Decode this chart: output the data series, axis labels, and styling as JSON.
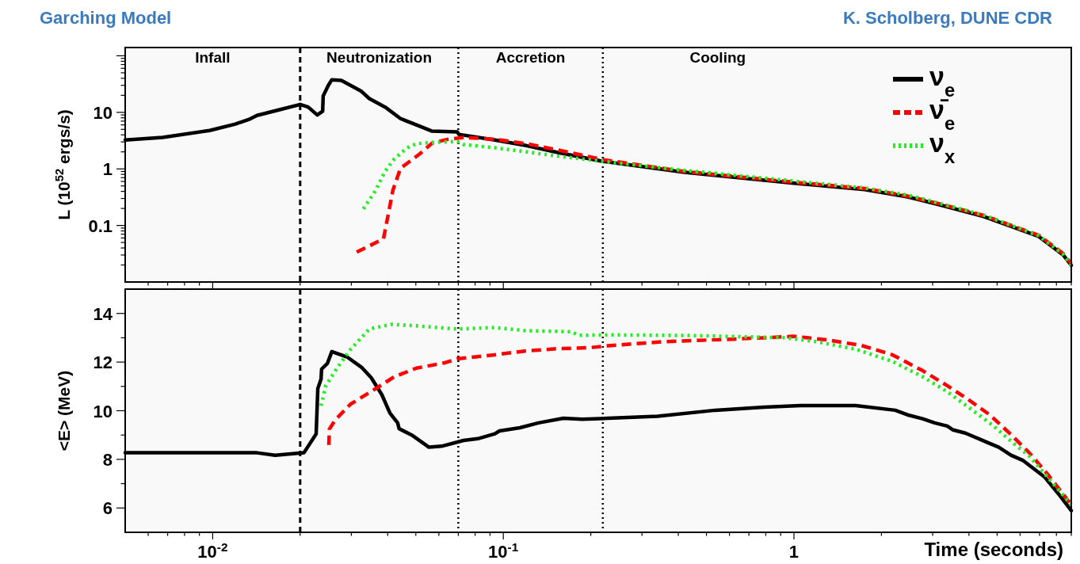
{
  "chart_data": [
    {
      "type": "line",
      "title": "Garching Model",
      "ylabel": "L (10$^{52}$ ergs/s)",
      "log": "xy",
      "legend": "top right",
      "tick_labels": "y",
      "annotations": [
        "K. Scholberg, DUNE CDR",
        "Infall",
        "Neutronization",
        "Accretion",
        "Cooling"
      ],
      "xlim": [
        0.005,
        9
      ],
      "xticks": [
        {
          "value": 0.006,
          "label": null
        },
        {
          "value": 0.007,
          "label": null
        },
        {
          "value": 0.008,
          "label": null
        },
        {
          "value": 0.009,
          "label": null
        },
        0.01,
        {
          "value": 0.02,
          "label": null
        },
        {
          "value": 0.03,
          "label": null
        },
        {
          "value": 0.04,
          "label": null
        },
        {
          "value": 0.05,
          "label": null
        },
        {
          "value": 0.06,
          "label": null
        },
        {
          "value": 0.07,
          "label": null
        },
        {
          "value": 0.08,
          "label": null
        },
        {
          "value": 0.09,
          "label": null
        },
        0.1,
        {
          "value": 0.2,
          "label": null
        },
        {
          "value": 0.3,
          "label": null
        },
        {
          "value": 0.4,
          "label": null
        },
        {
          "value": 0.5,
          "label": null
        },
        {
          "value": 0.6,
          "label": null
        },
        {
          "value": 0.7,
          "label": null
        },
        {
          "value": 0.8,
          "label": null
        },
        {
          "value": 0.9,
          "label": null
        },
        1,
        {
          "value": 2,
          "label": null
        },
        {
          "value": 3,
          "label": null
        },
        {
          "value": 4,
          "label": null
        },
        {
          "value": 5,
          "label": null
        },
        {
          "value": 6,
          "label": null
        },
        {
          "value": 7,
          "label": null
        },
        {
          "value": 8,
          "label": null
        },
        {
          "value": 9,
          "label": null
        }
      ],
      "ylim": [
        0.01,
        140
      ],
      "yticks": [
        {
          "value": 0.02,
          "label": null
        },
        {
          "value": 0.03,
          "label": null
        },
        {
          "value": 0.04,
          "label": null
        },
        {
          "value": 0.05,
          "label": null
        },
        {
          "value": 0.06,
          "label": null
        },
        {
          "value": 0.07,
          "label": null
        },
        {
          "value": 0.08,
          "label": null
        },
        {
          "value": 0.09,
          "label": null
        },
        0.1,
        {
          "value": 0.2,
          "label": null
        },
        {
          "value": 0.3,
          "label": null
        },
        {
          "value": 0.4,
          "label": null
        },
        {
          "value": 0.5,
          "label": null
        },
        {
          "value": 0.6,
          "label": null
        },
        {
          "value": 0.7,
          "label": null
        },
        {
          "value": 0.8,
          "label": null
        },
        {
          "value": 0.9,
          "label": null
        },
        1,
        {
          "value": 2,
          "label": null
        },
        {
          "value": 3,
          "label": null
        },
        {
          "value": 4,
          "label": null
        },
        {
          "value": 5,
          "label": null
        },
        {
          "value": 6,
          "label": null
        },
        {
          "value": 7,
          "label": null
        },
        {
          "value": 8,
          "label": null
        },
        {
          "value": 9,
          "label": null
        },
        10,
        {
          "value": 20,
          "label": null
        },
        {
          "value": 30,
          "label": null
        },
        {
          "value": 40,
          "label": null
        },
        {
          "value": 50,
          "label": null
        },
        {
          "value": 60,
          "label": null
        },
        {
          "value": 70,
          "label": null
        },
        {
          "value": 80,
          "label": null
        },
        {
          "value": 90,
          "label": null
        },
        {
          "value": 100,
          "label": null
        }
      ],
      "ref_lines": [
        {
          "axis": "x",
          "value": 0.02,
          "line_style": "dashed"
        },
        {
          "axis": "x",
          "value": 0.07,
          "line_style": "dotted"
        },
        {
          "axis": "x",
          "value": 0.22,
          "line_style": "dotted"
        }
      ],
      "series": [
        {
          "name": "ν$_{e}$",
          "color": "#000000",
          "line_style": "solid",
          "x": [
            0.005,
            0.00672,
            0.00976,
            0.0119,
            0.0133,
            0.0142,
            0.0173,
            0.02,
            0.0213,
            0.0229,
            0.0239,
            0.024,
            0.025,
            0.0257,
            0.0277,
            0.0298,
            0.0325,
            0.0346,
            0.0392,
            0.0443,
            0.0502,
            0.0569,
            0.0694,
            0.0703,
            0.0935,
            0.12,
            0.154,
            0.22,
            0.42,
            1.0,
            1.75,
            2.46,
            3.13,
            4.5,
            6.95,
            8.43,
            9
          ],
          "values": [
            3.25,
            3.6,
            4.77,
            6.16,
            7.45,
            8.8,
            11.4,
            13.8,
            12.4,
            9.0,
            10.5,
            19.5,
            30,
            37.7,
            36.7,
            30,
            23.5,
            17.5,
            12.4,
            7.75,
            6.0,
            4.65,
            4.53,
            4.08,
            3.25,
            2.58,
            1.95,
            1.36,
            0.87,
            0.56,
            0.43,
            0.32,
            0.236,
            0.144,
            0.064,
            0.0303,
            0.0197
          ]
        },
        {
          "name": "ν̄$_{e}$",
          "color": "#ff0000",
          "line_style": "dashed",
          "x": [
            0.0313,
            0.0387,
            0.0417,
            0.0443,
            0.0515,
            0.0569,
            0.0644,
            0.073,
            0.0935,
            0.12,
            0.154,
            0.22,
            0.42,
            1.0,
            1.75,
            2.46,
            3.13,
            4.5,
            6.95,
            8.43,
            9
          ],
          "values": [
            0.0337,
            0.058,
            0.42,
            1.03,
            1.83,
            2.86,
            3.34,
            3.6,
            3.34,
            2.79,
            2.16,
            1.46,
            0.9,
            0.58,
            0.45,
            0.33,
            0.245,
            0.15,
            0.067,
            0.032,
            0.021
          ]
        },
        {
          "name": "ν$_{x}$",
          "color": "#22ee22",
          "line_style": "dotted",
          "x": [
            0.033,
            0.0364,
            0.0392,
            0.0422,
            0.0467,
            0.0502,
            0.0569,
            0.0694,
            0.073,
            0.0935,
            0.12,
            0.154,
            0.22,
            0.42,
            1.0,
            1.75,
            2.46,
            3.13,
            4.5,
            6.95,
            8.43,
            9
          ],
          "values": [
            0.196,
            0.42,
            0.91,
            1.51,
            2.36,
            2.79,
            2.94,
            3.05,
            2.69,
            2.36,
            2.0,
            1.68,
            1.36,
            0.94,
            0.61,
            0.46,
            0.345,
            0.25,
            0.152,
            0.066,
            0.031,
            0.02
          ]
        }
      ]
    },
    {
      "type": "line",
      "xlabel": "Time (seconds)",
      "ylabel": "<E> (MeV)",
      "log": "x",
      "xlim": [
        0.005,
        9
      ],
      "xticks": [
        {
          "value": 0.006,
          "label": null
        },
        {
          "value": 0.007,
          "label": null
        },
        {
          "value": 0.008,
          "label": null
        },
        {
          "value": 0.009,
          "label": null
        },
        {
          "value": 0.01,
          "label": "10$^{-2}$"
        },
        {
          "value": 0.02,
          "label": null
        },
        {
          "value": 0.03,
          "label": null
        },
        {
          "value": 0.04,
          "label": null
        },
        {
          "value": 0.05,
          "label": null
        },
        {
          "value": 0.06,
          "label": null
        },
        {
          "value": 0.07,
          "label": null
        },
        {
          "value": 0.08,
          "label": null
        },
        {
          "value": 0.09,
          "label": null
        },
        {
          "value": 0.1,
          "label": "10$^{-1}$"
        },
        {
          "value": 0.2,
          "label": null
        },
        {
          "value": 0.3,
          "label": null
        },
        {
          "value": 0.4,
          "label": null
        },
        {
          "value": 0.5,
          "label": null
        },
        {
          "value": 0.6,
          "label": null
        },
        {
          "value": 0.7,
          "label": null
        },
        {
          "value": 0.8,
          "label": null
        },
        {
          "value": 0.9,
          "label": null
        },
        1,
        {
          "value": 2,
          "label": null
        },
        {
          "value": 3,
          "label": null
        },
        {
          "value": 4,
          "label": null
        },
        {
          "value": 5,
          "label": null
        },
        {
          "value": 6,
          "label": null
        },
        {
          "value": 7,
          "label": null
        },
        {
          "value": 8,
          "label": null
        },
        {
          "value": 9,
          "label": null
        }
      ],
      "ylim": [
        5,
        15
      ],
      "yticks": [
        6,
        {
          "value": 7,
          "label": null
        },
        8,
        {
          "value": 9,
          "label": null
        },
        10,
        {
          "value": 11,
          "label": null
        },
        12,
        {
          "value": 13,
          "label": null
        },
        14
      ],
      "ref_lines": [
        {
          "axis": "x",
          "value": 0.02,
          "line_style": "dashed"
        },
        {
          "axis": "x",
          "value": 0.07,
          "line_style": "dotted"
        },
        {
          "axis": "x",
          "value": 0.22,
          "line_style": "dotted"
        }
      ],
      "series": [
        {
          "color": "#000000",
          "line_style": "solid",
          "x": [
            0.005,
            0.0142,
            0.0164,
            0.0206,
            0.0227,
            0.023,
            0.0236,
            0.0237,
            0.0248,
            0.0257,
            0.0291,
            0.0325,
            0.0351,
            0.0382,
            0.0407,
            0.0433,
            0.0438,
            0.0484,
            0.0555,
            0.0613,
            0.073,
            0.0817,
            0.0935,
            0.097,
            0.114,
            0.132,
            0.161,
            0.187,
            0.229,
            0.339,
            0.536,
            0.789,
            1.055,
            1.63,
            2.23,
            2.46,
            2.77,
            3.05,
            3.37,
            3.53,
            3.89,
            4.6,
            5.07,
            5.58,
            6.15,
            7.29,
            8.22,
            9
          ],
          "values": [
            8.27,
            8.27,
            8.17,
            8.27,
            9.05,
            10.91,
            11.3,
            11.71,
            11.94,
            12.43,
            12.2,
            11.79,
            11.36,
            10.66,
            9.91,
            9.5,
            9.26,
            9.0,
            8.5,
            8.54,
            8.78,
            8.85,
            9.05,
            9.17,
            9.3,
            9.5,
            9.69,
            9.65,
            9.69,
            9.77,
            10.02,
            10.15,
            10.21,
            10.21,
            10.02,
            9.83,
            9.67,
            9.5,
            9.37,
            9.21,
            9.08,
            8.71,
            8.5,
            8.17,
            7.95,
            7.27,
            6.51,
            5.89
          ]
        },
        {
          "color": "#ff0000",
          "line_style": "dashed",
          "x": [
            0.0251,
            0.0252,
            0.0264,
            0.0298,
            0.0364,
            0.0422,
            0.0502,
            0.0628,
            0.0694,
            0.0935,
            0.12,
            0.154,
            0.197,
            0.229,
            0.356,
            0.577,
            0.789,
            1.0,
            1.31,
            1.71,
            2.18,
            2.77,
            3.37,
            3.98,
            4.72,
            5.58,
            6.45,
            7.46,
            9
          ],
          "values": [
            8.59,
            9.24,
            9.62,
            10.27,
            10.91,
            11.4,
            11.75,
            11.97,
            12.13,
            12.3,
            12.46,
            12.55,
            12.59,
            12.67,
            12.84,
            12.93,
            13.0,
            13.06,
            12.91,
            12.68,
            12.3,
            11.65,
            11.03,
            10.46,
            9.83,
            9.02,
            8.27,
            7.39,
            6.14
          ]
        },
        {
          "color": "#22ee22",
          "line_style": "dotted",
          "x": [
            0.0236,
            0.0245,
            0.027,
            0.0298,
            0.0346,
            0.0412,
            0.0502,
            0.0694,
            0.0935,
            0.12,
            0.17,
            0.183,
            0.229,
            0.453,
            0.935,
            1.19,
            1.63,
            2.18,
            2.77,
            3.37,
            3.98,
            4.83,
            5.72,
            6.45,
            7.46,
            9
          ],
          "values": [
            10.2,
            11.04,
            11.81,
            12.52,
            13.36,
            13.55,
            13.49,
            13.36,
            13.42,
            13.29,
            13.25,
            13.1,
            13.12,
            13.09,
            13.0,
            12.84,
            12.53,
            12.03,
            11.4,
            10.78,
            10.15,
            9.4,
            8.64,
            8.14,
            7.27,
            6.14
          ]
        }
      ]
    }
  ]
}
